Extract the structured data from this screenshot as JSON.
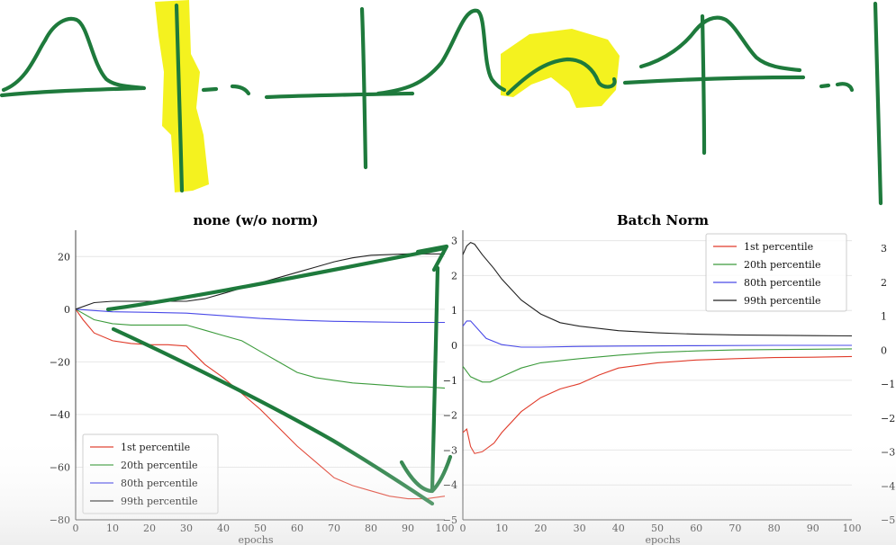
{
  "colors": {
    "ink": "#1e7a3c",
    "highlight": "#f3f000",
    "grid": "#e6e6e6",
    "series": [
      "#e03b2a",
      "#3c9b3c",
      "#4a4ae8",
      "#222222"
    ]
  },
  "chart_data": [
    {
      "type": "line",
      "title": "none (w/o norm)",
      "xlabel": "epochs",
      "ylabel": "",
      "xlim": [
        0,
        100
      ],
      "ylim": [
        -80,
        30
      ],
      "xticks": [
        0,
        10,
        20,
        30,
        40,
        50,
        60,
        70,
        80,
        90,
        100
      ],
      "yticks": [
        20,
        0,
        -20,
        -40,
        -60,
        -80
      ],
      "grid": true,
      "legend": "bottom-left",
      "series": [
        {
          "name": "1st percentile",
          "x": [
            0,
            2,
            5,
            10,
            15,
            20,
            25,
            30,
            35,
            40,
            45,
            50,
            55,
            60,
            65,
            70,
            75,
            80,
            85,
            90,
            95,
            100
          ],
          "y": [
            0,
            -4,
            -9,
            -12,
            -13,
            -13.5,
            -13.5,
            -14,
            -21,
            -26,
            -32,
            -38,
            -45,
            -52,
            -58,
            -64,
            -67,
            -69,
            -71,
            -72,
            -72,
            -71
          ]
        },
        {
          "name": "20th percentile",
          "x": [
            0,
            5,
            10,
            15,
            20,
            25,
            30,
            35,
            40,
            45,
            50,
            55,
            60,
            65,
            70,
            75,
            80,
            85,
            90,
            95,
            100
          ],
          "y": [
            0,
            -4,
            -5.5,
            -6,
            -6,
            -6,
            -6,
            -8,
            -10,
            -12,
            -16,
            -20,
            -24,
            -26,
            -27,
            -28,
            -28.5,
            -29,
            -29.5,
            -29.5,
            -30
          ]
        },
        {
          "name": "80th percentile",
          "x": [
            0,
            5,
            10,
            20,
            30,
            40,
            50,
            60,
            70,
            80,
            90,
            100
          ],
          "y": [
            0,
            -0.5,
            -1,
            -1.2,
            -1.5,
            -2.5,
            -3.5,
            -4.2,
            -4.6,
            -4.8,
            -5,
            -5
          ]
        },
        {
          "name": "99th percentile",
          "x": [
            0,
            5,
            10,
            20,
            30,
            35,
            40,
            45,
            50,
            55,
            60,
            65,
            70,
            75,
            80,
            90,
            100
          ],
          "y": [
            0,
            2.5,
            3,
            3,
            3,
            4,
            6,
            8,
            10,
            12,
            14,
            16,
            18,
            19.5,
            20.5,
            21,
            21
          ]
        }
      ]
    },
    {
      "type": "line",
      "title": "Batch Norm",
      "xlabel": "epochs",
      "ylabel": "",
      "xlim": [
        0,
        100
      ],
      "ylim": [
        -5,
        3.3
      ],
      "xticks": [
        0,
        10,
        20,
        30,
        40,
        50,
        60,
        70,
        80,
        90,
        100
      ],
      "yticks": [
        3,
        2,
        1,
        0,
        -1,
        -2,
        -3,
        -4,
        -5
      ],
      "grid": true,
      "legend": "top-right",
      "series": [
        {
          "name": "1st percentile",
          "x": [
            0,
            1,
            2,
            3,
            5,
            8,
            10,
            15,
            20,
            25,
            30,
            35,
            40,
            50,
            60,
            70,
            80,
            90,
            100
          ],
          "y": [
            -2.5,
            -2.4,
            -2.9,
            -3.1,
            -3.05,
            -2.8,
            -2.5,
            -1.9,
            -1.5,
            -1.25,
            -1.1,
            -0.85,
            -0.65,
            -0.5,
            -0.42,
            -0.38,
            -0.35,
            -0.34,
            -0.32
          ]
        },
        {
          "name": "20th percentile",
          "x": [
            0,
            2,
            5,
            7,
            10,
            15,
            20,
            30,
            40,
            50,
            60,
            70,
            80,
            90,
            100
          ],
          "y": [
            -0.6,
            -0.9,
            -1.05,
            -1.05,
            -0.9,
            -0.65,
            -0.5,
            -0.38,
            -0.28,
            -0.2,
            -0.16,
            -0.13,
            -0.12,
            -0.11,
            -0.1
          ]
        },
        {
          "name": "80th percentile",
          "x": [
            0,
            1,
            2,
            4,
            6,
            10,
            15,
            20,
            30,
            40,
            60,
            80,
            100
          ],
          "y": [
            0.55,
            0.7,
            0.7,
            0.45,
            0.2,
            0.02,
            -0.05,
            -0.05,
            -0.03,
            -0.02,
            -0.01,
            0,
            0
          ]
        },
        {
          "name": "99th percentile",
          "x": [
            0,
            1,
            2,
            3,
            5,
            8,
            10,
            15,
            20,
            25,
            30,
            40,
            50,
            60,
            70,
            80,
            90,
            100
          ],
          "y": [
            2.6,
            2.85,
            2.95,
            2.9,
            2.6,
            2.2,
            1.9,
            1.3,
            0.9,
            0.65,
            0.55,
            0.42,
            0.36,
            0.32,
            0.3,
            0.29,
            0.28,
            0.27
          ]
        }
      ]
    }
  ],
  "clipped_axis": {
    "yticks": [
      "3",
      "2",
      "1",
      "0",
      "−1",
      "−2",
      "−3",
      "−4",
      "−5"
    ]
  }
}
